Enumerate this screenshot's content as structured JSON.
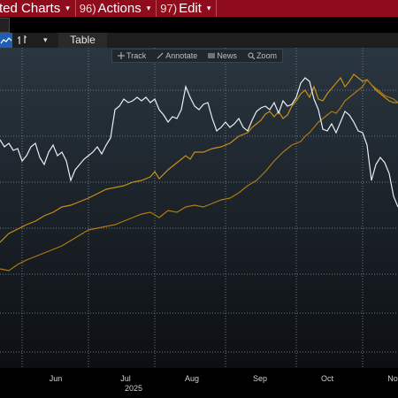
{
  "menu": {
    "items": [
      {
        "num": "",
        "label": "ted Charts",
        "caret": "▾"
      },
      {
        "num": "96)",
        "label": "Actions",
        "caret": "▾"
      },
      {
        "num": "97)",
        "label": "Edit",
        "caret": "▾"
      }
    ]
  },
  "toolbar": {
    "table_label": "Table",
    "dropdown_glyph": "▾"
  },
  "chart_tools": {
    "track": "Track",
    "annotate": "Annotate",
    "news": "News",
    "zoom": "Zoom"
  },
  "colors": {
    "menubar": "#8e0c1c",
    "series_white": "#e8eef2",
    "series_gold": "#c98f14",
    "series_gold_dark": "#b07a10",
    "active_tool": "#1e5fb4"
  },
  "axis": {
    "months": [
      "Jun",
      "Jul",
      "Aug",
      "Sep",
      "Oct",
      "No"
    ],
    "year": "2025"
  }
}
